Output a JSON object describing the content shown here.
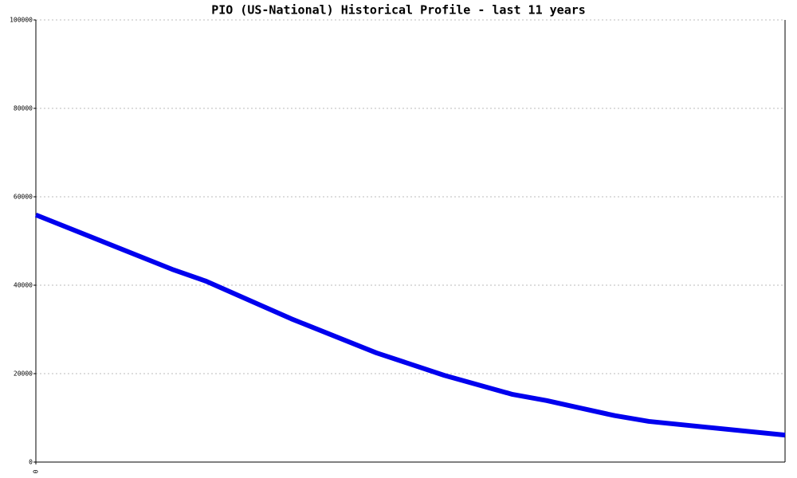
{
  "chart_data": {
    "type": "line",
    "title": "PIO (US-National) Historical Profile - last 11 years",
    "x": [
      0,
      24,
      30,
      45,
      60,
      72,
      84,
      90,
      102,
      108,
      132
    ],
    "series": [
      {
        "color": "#0000ee",
        "values": [
          55900,
          43600,
          40900,
          32400,
          24700,
          19600,
          15300,
          13900,
          10500,
          9200,
          6100
        ]
      }
    ],
    "xlim": [
      0,
      132
    ],
    "xticks": [
      0
    ],
    "ylim": [
      0,
      100000
    ],
    "yticks": [
      0,
      20000,
      40000,
      60000,
      80000,
      100000
    ],
    "grid": true
  }
}
